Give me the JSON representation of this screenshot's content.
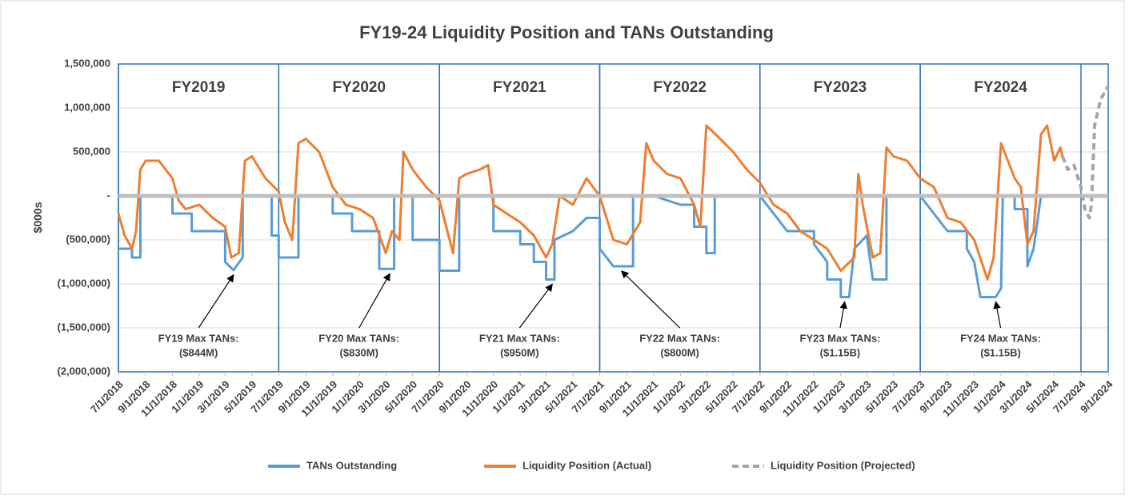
{
  "chart_data": {
    "type": "line",
    "title": "FY19-24 Liquidity Position and TANs Outstanding",
    "y_label": "$000s",
    "ylim": [
      -2000000,
      1500000
    ],
    "yticks": [
      {
        "value": -2000000,
        "label": "(2,000,000)"
      },
      {
        "value": -1500000,
        "label": "(1,500,000)"
      },
      {
        "value": -1000000,
        "label": "(1,000,000)"
      },
      {
        "value": -500000,
        "label": "(500,000)"
      },
      {
        "value": 0,
        "label": "-"
      },
      {
        "value": 500000,
        "label": "500,000"
      },
      {
        "value": 1000000,
        "label": "1,000,000"
      },
      {
        "value": 1500000,
        "label": "1,500,000"
      }
    ],
    "xlim": [
      "7/1/2018",
      "9/1/2024"
    ],
    "xticks": [
      "7/1/2018",
      "9/1/2018",
      "11/1/2018",
      "1/1/2019",
      "3/1/2019",
      "5/1/2019",
      "7/1/2019",
      "9/1/2019",
      "11/1/2019",
      "1/1/2020",
      "3/1/2020",
      "5/1/2020",
      "7/1/2020",
      "9/1/2020",
      "11/1/2020",
      "1/1/2021",
      "3/1/2021",
      "5/1/2021",
      "7/1/2021",
      "9/1/2021",
      "11/1/2021",
      "1/1/2022",
      "3/1/2022",
      "5/1/2022",
      "7/1/2022",
      "9/1/2022",
      "11/1/2022",
      "1/1/2023",
      "3/1/2023",
      "5/1/2023",
      "7/1/2023",
      "9/1/2023",
      "11/1/2023",
      "1/1/2024",
      "3/1/2024",
      "5/1/2024",
      "7/1/2024",
      "9/1/2024"
    ],
    "grid": true,
    "legend": "bottom",
    "fiscal_years": [
      {
        "label": "FY2019",
        "start": "7/1/2018",
        "end": "7/1/2019"
      },
      {
        "label": "FY2020",
        "start": "7/1/2019",
        "end": "7/1/2020"
      },
      {
        "label": "FY2021",
        "start": "7/1/2020",
        "end": "7/1/2021"
      },
      {
        "label": "FY2022",
        "start": "7/1/2021",
        "end": "7/1/2022"
      },
      {
        "label": "FY2023",
        "start": "7/1/2022",
        "end": "7/1/2023"
      },
      {
        "label": "FY2024",
        "start": "7/1/2023",
        "end": "7/1/2024"
      }
    ],
    "annotations": [
      {
        "text": "FY19 Max TANs:",
        "value": "($844M)",
        "x": "3/20/2019",
        "y": -844000
      },
      {
        "text": "FY20 Max TANs:",
        "value": "($830M)",
        "x": "3/10/2020",
        "y": -830000
      },
      {
        "text": "FY21 Max TANs:",
        "value": "($950M)",
        "x": "3/15/2021",
        "y": -950000
      },
      {
        "text": "FY22 Max TANs:",
        "value": "($800M)",
        "x": "8/20/2021",
        "y": -800000
      },
      {
        "text": "FY23 Max TANs:",
        "value": "($1.15B)",
        "x": "1/10/2023",
        "y": -1150000
      },
      {
        "text": "FY24 Max TANs:",
        "value": "($1.15B)",
        "x": "12/20/2023",
        "y": -1150000
      }
    ],
    "series": [
      {
        "name": "TANs Outstanding",
        "color": "#5b9bd5",
        "dashed": false,
        "x": [
          "7/1/2018",
          "8/1/2018",
          "8/1/2018",
          "8/20/2018",
          "8/20/2018",
          "11/1/2018",
          "11/1/2018",
          "12/15/2018",
          "12/15/2018",
          "3/1/2019",
          "3/1/2019",
          "3/20/2019",
          "4/10/2019",
          "4/10/2019",
          "6/15/2019",
          "6/15/2019",
          "7/1/2019",
          "7/1/2019",
          "8/15/2019",
          "8/15/2019",
          "11/1/2019",
          "11/1/2019",
          "12/15/2019",
          "12/15/2019",
          "2/15/2020",
          "2/15/2020",
          "3/20/2020",
          "3/20/2020",
          "5/1/2020",
          "5/1/2020",
          "7/1/2020",
          "7/1/2020",
          "8/15/2020",
          "8/15/2020",
          "11/1/2020",
          "11/1/2020",
          "1/1/2021",
          "1/1/2021",
          "2/1/2021",
          "2/1/2021",
          "3/1/2021",
          "3/1/2021",
          "3/20/2021",
          "3/20/2021",
          "5/1/2021",
          "6/1/2021",
          "7/1/2021",
          "7/1/2021",
          "8/1/2021",
          "9/15/2021",
          "9/15/2021",
          "11/1/2021",
          "1/1/2022",
          "2/1/2022",
          "2/1/2022",
          "3/1/2022",
          "3/1/2022",
          "3/20/2022",
          "3/20/2022",
          "7/1/2022",
          "8/1/2022",
          "9/1/2022",
          "11/1/2022",
          "11/1/2022",
          "12/1/2022",
          "12/1/2022",
          "1/1/2023",
          "1/1/2023",
          "1/20/2023",
          "2/1/2023",
          "3/1/2023",
          "3/15/2023",
          "4/15/2023",
          "4/15/2023",
          "7/1/2023",
          "8/1/2023",
          "9/1/2023",
          "10/15/2023",
          "10/15/2023",
          "11/1/2023",
          "11/15/2023",
          "12/20/2023",
          "1/1/2024",
          "1/5/2024",
          "2/1/2024",
          "2/1/2024",
          "3/1/2024",
          "3/1/2024",
          "3/15/2024",
          "4/1/2024",
          "7/1/2024"
        ],
        "values": [
          -600000,
          -600000,
          -700000,
          -700000,
          0,
          0,
          -200000,
          -200000,
          -400000,
          -400000,
          -750000,
          -844000,
          -700000,
          0,
          0,
          -450000,
          -450000,
          -700000,
          -700000,
          0,
          0,
          -200000,
          -200000,
          -400000,
          -400000,
          -830000,
          -830000,
          0,
          0,
          -500000,
          -500000,
          -850000,
          -850000,
          0,
          0,
          -400000,
          -400000,
          -550000,
          -550000,
          -750000,
          -750000,
          -950000,
          -950000,
          -500000,
          -400000,
          -250000,
          -250000,
          -600000,
          -800000,
          -800000,
          0,
          0,
          -100000,
          -100000,
          -350000,
          -350000,
          -650000,
          -650000,
          0,
          0,
          -200000,
          -400000,
          -400000,
          -550000,
          -750000,
          -950000,
          -950000,
          -1150000,
          -1150000,
          -600000,
          -450000,
          -950000,
          -950000,
          0,
          0,
          -200000,
          -400000,
          -400000,
          -600000,
          -750000,
          -1150000,
          -1150000,
          -1050000,
          0,
          0,
          -150000,
          -150000,
          -800000,
          -600000,
          0,
          0
        ]
      },
      {
        "name": "Liquidity Position (Actual)",
        "color": "#ed7d31",
        "dashed": false,
        "x": [
          "7/1/2018",
          "7/15/2018",
          "8/1/2018",
          "8/10/2018",
          "8/20/2018",
          "9/1/2018",
          "10/1/2018",
          "11/1/2018",
          "11/15/2018",
          "12/1/2018",
          "1/1/2019",
          "2/1/2019",
          "3/1/2019",
          "3/15/2019",
          "4/1/2019",
          "4/15/2019",
          "5/1/2019",
          "6/1/2019",
          "7/1/2019",
          "7/15/2019",
          "8/1/2019",
          "8/15/2019",
          "9/1/2019",
          "10/1/2019",
          "11/1/2019",
          "12/1/2019",
          "1/1/2020",
          "2/1/2020",
          "3/1/2020",
          "3/15/2020",
          "4/1/2020",
          "4/10/2020",
          "5/1/2020",
          "6/1/2020",
          "7/1/2020",
          "8/1/2020",
          "8/15/2020",
          "9/1/2020",
          "10/1/2020",
          "10/20/2020",
          "11/1/2020",
          "12/1/2020",
          "1/1/2021",
          "2/1/2021",
          "3/1/2021",
          "3/15/2021",
          "4/1/2021",
          "5/1/2021",
          "6/1/2021",
          "7/1/2021",
          "8/1/2021",
          "9/1/2021",
          "10/1/2021",
          "10/15/2021",
          "11/1/2021",
          "12/1/2021",
          "1/1/2022",
          "2/1/2022",
          "2/15/2022",
          "3/1/2022",
          "4/1/2022",
          "5/1/2022",
          "6/1/2022",
          "7/1/2022",
          "8/1/2022",
          "9/1/2022",
          "10/1/2022",
          "11/1/2022",
          "12/1/2022",
          "1/1/2023",
          "2/1/2023",
          "2/10/2023",
          "2/20/2023",
          "3/15/2023",
          "4/1/2023",
          "4/15/2023",
          "5/1/2023",
          "6/1/2023",
          "7/1/2023",
          "8/1/2023",
          "9/1/2023",
          "10/1/2023",
          "11/1/2023",
          "12/1/2023",
          "12/15/2023",
          "1/1/2024",
          "2/1/2024",
          "2/15/2024",
          "3/1/2024",
          "3/15/2024",
          "4/1/2024",
          "4/15/2024",
          "5/1/2024",
          "5/15/2024",
          "5/20/2024"
        ],
        "values": [
          -200000,
          -450000,
          -600000,
          -400000,
          300000,
          400000,
          400000,
          200000,
          -50000,
          -150000,
          -100000,
          -250000,
          -350000,
          -700000,
          -650000,
          400000,
          450000,
          200000,
          50000,
          -300000,
          -500000,
          600000,
          650000,
          500000,
          100000,
          -100000,
          -150000,
          -250000,
          -650000,
          -400000,
          -500000,
          500000,
          300000,
          100000,
          -50000,
          -650000,
          200000,
          250000,
          300000,
          350000,
          -100000,
          -200000,
          -300000,
          -450000,
          -700000,
          -550000,
          0,
          -100000,
          200000,
          0,
          -500000,
          -550000,
          -300000,
          600000,
          400000,
          250000,
          200000,
          -100000,
          -350000,
          800000,
          650000,
          500000,
          300000,
          150000,
          -100000,
          -200000,
          -400000,
          -500000,
          -600000,
          -850000,
          -700000,
          250000,
          -100000,
          -700000,
          -650000,
          550000,
          450000,
          400000,
          200000,
          100000,
          -250000,
          -300000,
          -500000,
          -950000,
          -700000,
          600000,
          200000,
          100000,
          -550000,
          -400000,
          700000,
          800000,
          400000,
          550000,
          450000
        ]
      },
      {
        "name": "Liquidity Position (Projected)",
        "color": "#a5a5a5",
        "dashed": true,
        "x": [
          "5/20/2024",
          "6/1/2024",
          "6/15/2024",
          "7/1/2024",
          "7/10/2024",
          "7/20/2024",
          "7/25/2024",
          "8/1/2024",
          "8/15/2024",
          "9/1/2024"
        ],
        "values": [
          450000,
          300000,
          350000,
          100000,
          -150000,
          -250000,
          -100000,
          800000,
          1100000,
          1250000
        ]
      }
    ]
  }
}
